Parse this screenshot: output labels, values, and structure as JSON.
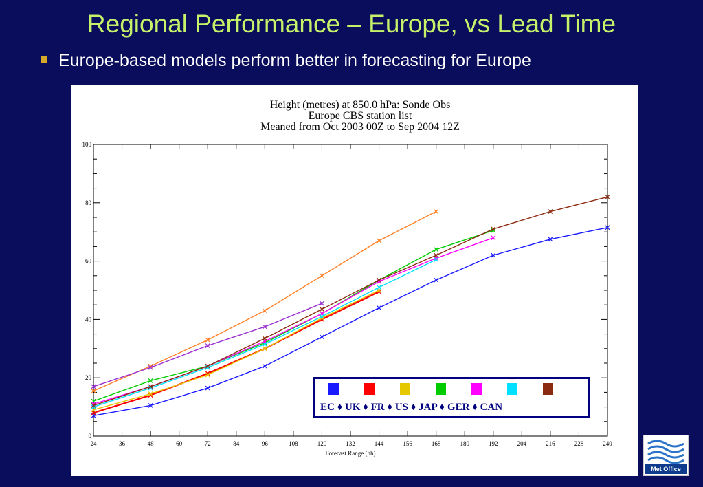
{
  "slide": {
    "title": "Regional Performance – Europe, vs Lead Time",
    "bullet": "Europe-based models perform better in forecasting for Europe"
  },
  "logo": {
    "text": "Met Office",
    "icon": "waves-icon"
  },
  "chart_data": {
    "type": "line",
    "title_lines": [
      "Height (metres) at 850.0 hPa:  Sonde Obs",
      "Europe CBS station list",
      "Meaned from Oct 2003 00Z to Sep 2004 12Z"
    ],
    "xlabel": "Forecast Range (hh)",
    "ylabel": "",
    "xlim": [
      24,
      240
    ],
    "ylim": [
      0,
      100
    ],
    "xticks": [
      24,
      36,
      48,
      60,
      72,
      84,
      96,
      108,
      120,
      132,
      144,
      156,
      168,
      180,
      192,
      204,
      216,
      228,
      240
    ],
    "yticks": [
      0,
      20,
      40,
      60,
      80,
      100
    ],
    "grid": false,
    "legend_position": "bottom-right",
    "legend_text": "EC ♦ UK ♦ FR ♦ US ♦ JAP ♦ GER ♦ CAN",
    "series": [
      {
        "name": "EC",
        "color": "#1a1aff",
        "x": [
          24,
          48,
          72,
          96,
          120,
          144,
          168,
          192,
          216,
          240
        ],
        "y": [
          7,
          10.5,
          16.5,
          24,
          34,
          44,
          53.5,
          62,
          67.5,
          71.5
        ]
      },
      {
        "name": "UK",
        "color": "#ff0000",
        "x": [
          24,
          48,
          72,
          96,
          120,
          144
        ],
        "y": [
          8,
          14,
          21.5,
          30,
          40,
          49.5
        ]
      },
      {
        "name": "FR",
        "color": "#e6c800",
        "x": [
          24,
          48,
          72,
          96,
          120,
          144
        ],
        "y": [
          9,
          14.5,
          21,
          30,
          40.5,
          50
        ]
      },
      {
        "name": "US",
        "color": "#00cc00",
        "x": [
          24,
          48,
          72,
          96,
          120,
          144,
          168,
          192
        ],
        "y": [
          12,
          19,
          24,
          32,
          42,
          53.5,
          64,
          70.5
        ]
      },
      {
        "name": "JAP",
        "color": "#ff00ff",
        "x": [
          24,
          48,
          72,
          96,
          120,
          144,
          168,
          192
        ],
        "y": [
          11,
          17,
          24,
          32.5,
          42,
          53,
          61,
          68
        ]
      },
      {
        "name": "GER",
        "color": "#00e0ff",
        "x": [
          24,
          48,
          72,
          96,
          120,
          144,
          168
        ],
        "y": [
          10,
          16.5,
          23.5,
          31.5,
          41,
          51,
          60.5
        ]
      },
      {
        "name": "CAN",
        "color": "#8b2b12",
        "x": [
          24,
          48,
          72,
          96,
          120,
          144,
          168,
          192,
          216,
          240
        ],
        "y": [
          10.5,
          17,
          24,
          33.5,
          43.5,
          53.5,
          62,
          71,
          77,
          82
        ]
      },
      {
        "name": "",
        "color": "#ff7f24",
        "x": [
          24,
          48,
          72,
          96,
          120,
          144,
          168
        ],
        "y": [
          15.5,
          24,
          33,
          43,
          55,
          67,
          77
        ]
      },
      {
        "name": "",
        "color": "#9a30d0",
        "x": [
          24,
          48,
          72,
          96,
          120
        ],
        "y": [
          17,
          23.5,
          31,
          37.5,
          45.5
        ]
      }
    ]
  }
}
